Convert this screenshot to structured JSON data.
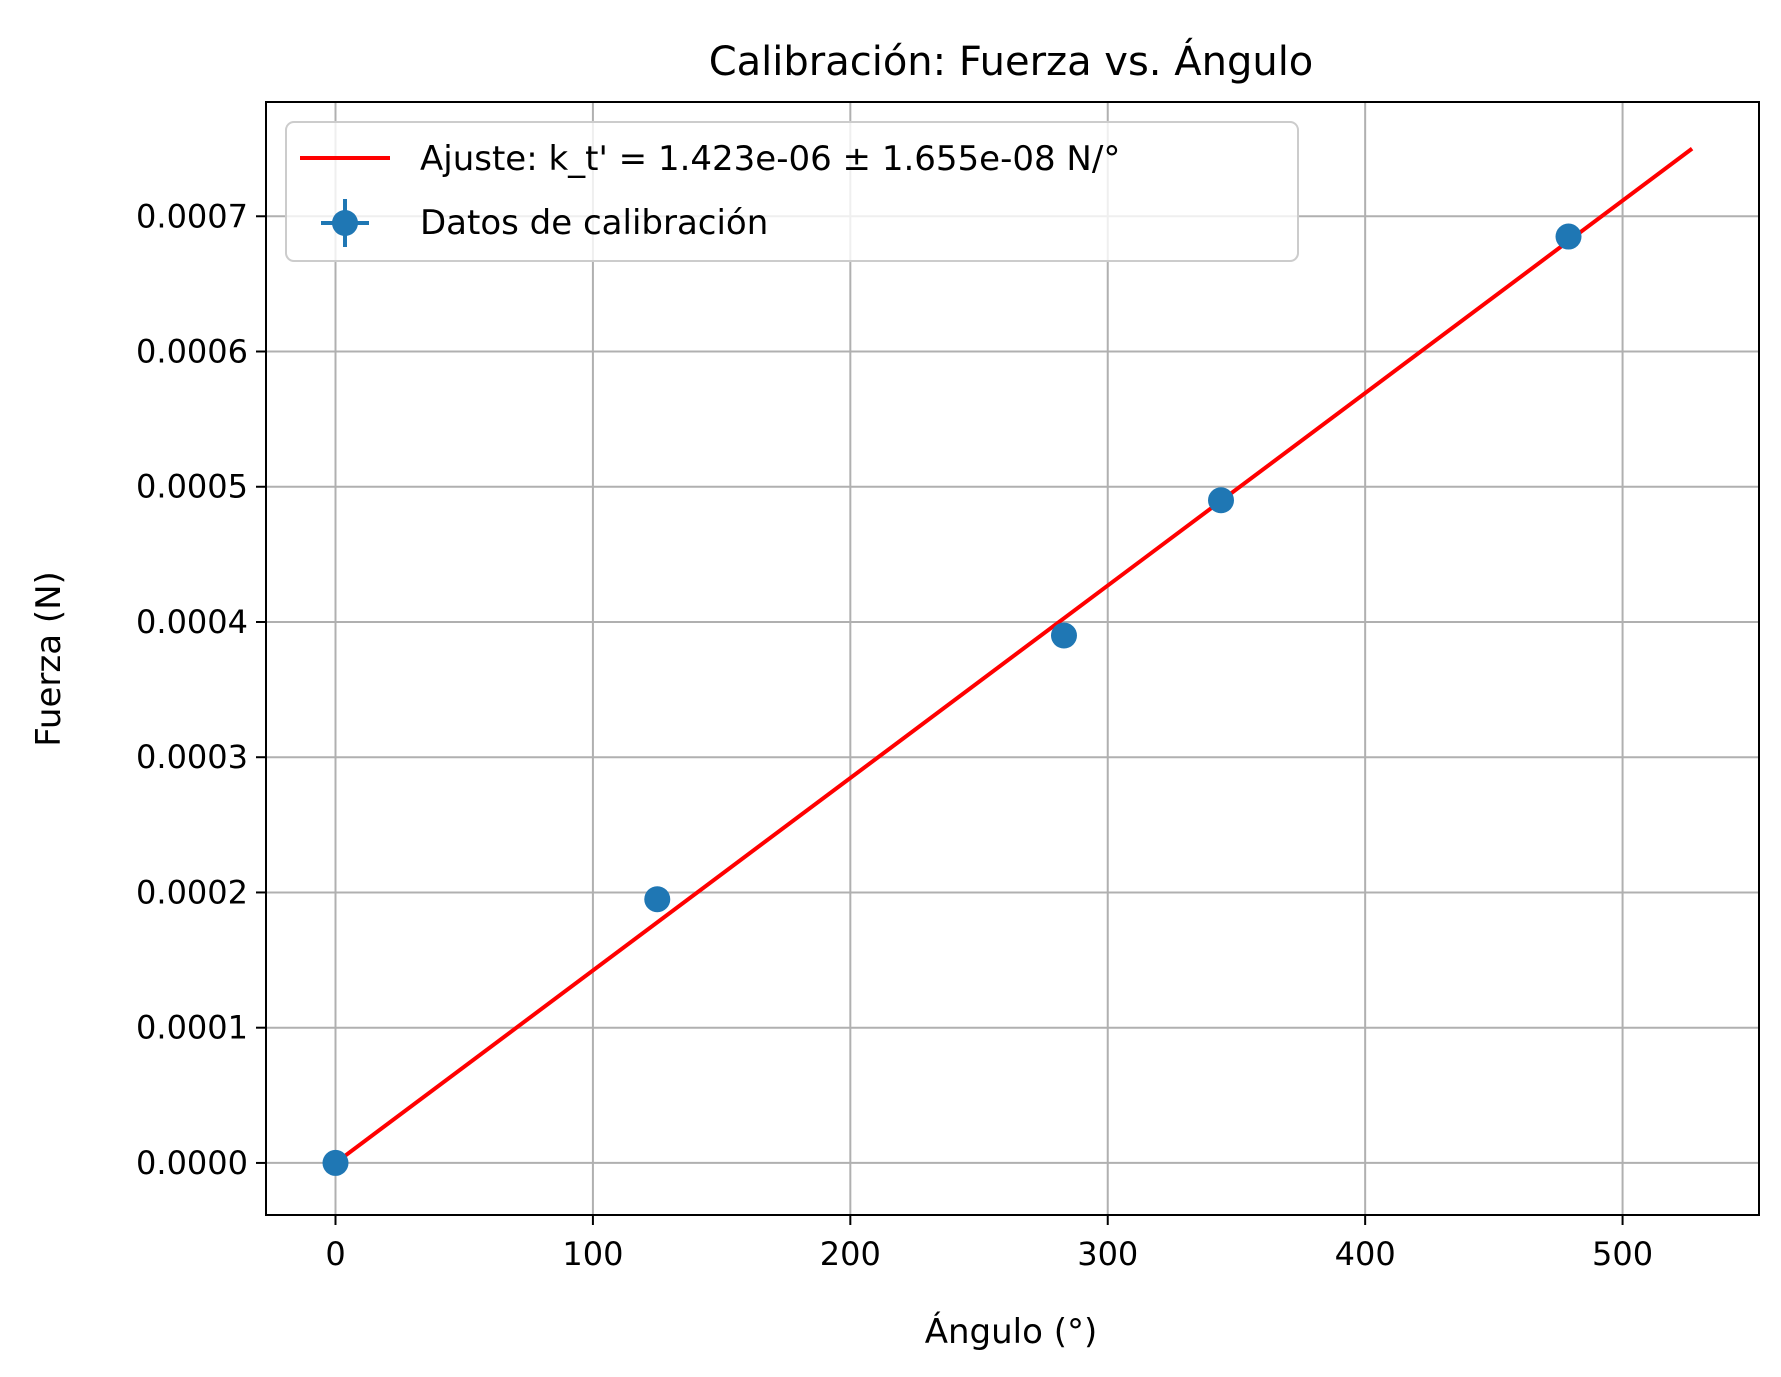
{
  "chart_data": {
    "type": "scatter",
    "title": "Calibración: Fuerza vs. Ángulo",
    "xlabel": "Ángulo (°)",
    "ylabel": "Fuerza (N)",
    "xlim": [
      -27,
      553
    ],
    "ylim": [
      -3.85e-05,
      0.0007845
    ],
    "xticks": [
      0,
      100,
      200,
      300,
      400,
      500
    ],
    "xtick_labels": [
      "0",
      "100",
      "200",
      "300",
      "400",
      "500"
    ],
    "yticks": [
      0,
      0.0001,
      0.0002,
      0.0003,
      0.0004,
      0.0005,
      0.0006,
      0.0007
    ],
    "ytick_labels": [
      "0.0000",
      "0.0001",
      "0.0002",
      "0.0003",
      "0.0004",
      "0.0005",
      "0.0006",
      "0.0007"
    ],
    "grid": true,
    "legend_position": "top-left",
    "series": [
      {
        "name": "Datos de calibración",
        "kind": "scatter",
        "color": "#1f77b4",
        "x": [
          0,
          125,
          283,
          344,
          479
        ],
        "y": [
          0.0,
          0.000195,
          0.00039,
          0.00049,
          0.000685
        ]
      },
      {
        "name": "Ajuste: k_t' = 1.423e-06 ± 1.655e-08 N/°",
        "kind": "line",
        "color": "#ff0000",
        "x": [
          0,
          527
        ],
        "y": [
          0.0,
          0.00075
        ]
      }
    ]
  }
}
